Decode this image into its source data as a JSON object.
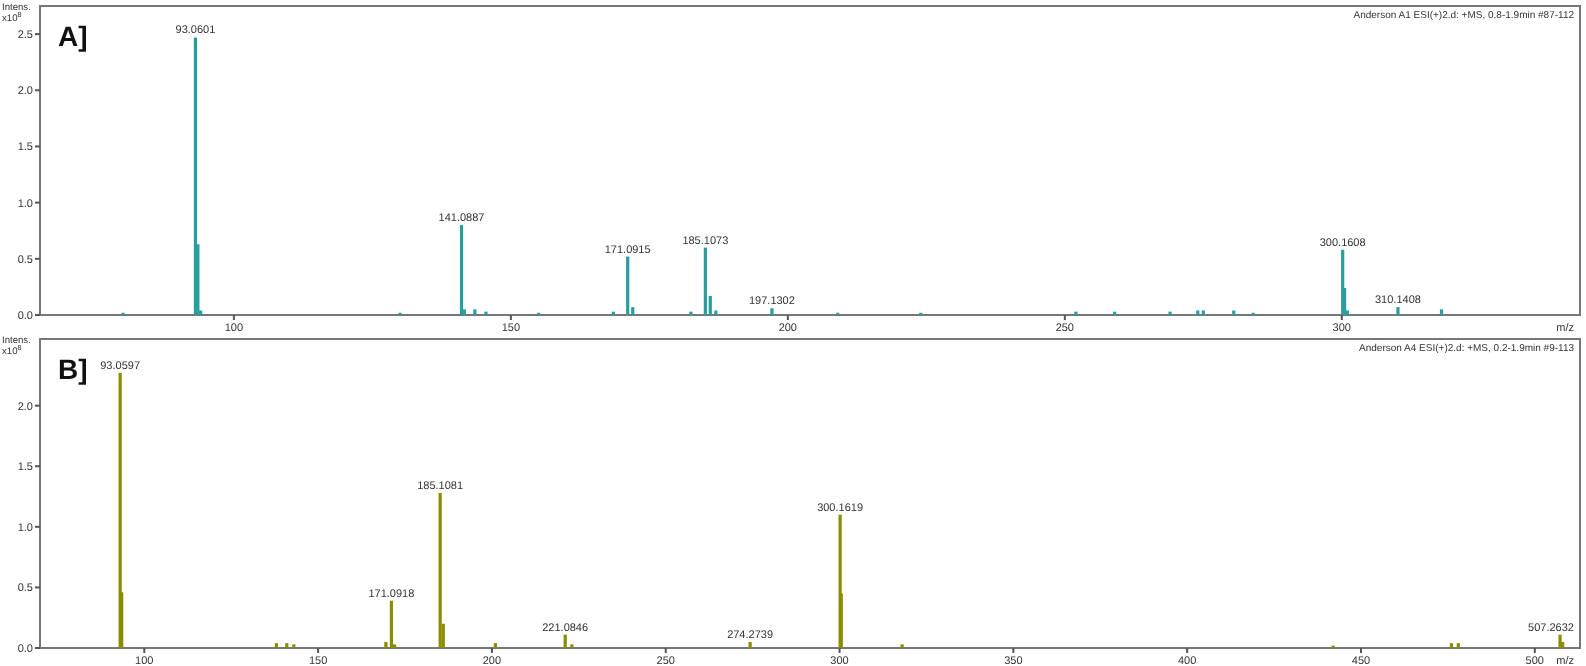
{
  "chart_data": [
    {
      "type": "bar",
      "title": "A]",
      "ylabel": "Intens. x10$^{8}$",
      "xlabel": "m/z",
      "xlim": [
        65,
        343
      ],
      "ylim": [
        0,
        2.75
      ],
      "xticks": [
        100,
        150,
        200,
        250,
        300
      ],
      "yticks": [
        {
          "value": 0,
          "label": "0.0"
        },
        {
          "value": 0.5,
          "label": "0.5"
        },
        {
          "value": 1,
          "label": "1.0"
        },
        {
          "value": 1.5,
          "label": "1.5"
        },
        {
          "value": 2,
          "label": "2.0"
        },
        {
          "value": 2.5,
          "label": "2.5"
        }
      ],
      "series": [
        {
          "color": "#2a9d9d",
          "x": [
            80,
            93.06,
            93.5,
            94,
            130,
            141.09,
            141.6,
            143.5,
            145.5,
            155,
            168.5,
            171.09,
            172,
            182.5,
            185.11,
            186,
            187,
            197.13,
            209,
            224,
            252,
            259,
            269,
            274,
            275,
            280.5,
            284,
            300.16,
            300.5,
            301,
            310.14,
            318
          ],
          "values": [
            0.02,
            2.47,
            0.63,
            0.04,
            0.02,
            0.8,
            0.05,
            0.05,
            0.03,
            0.02,
            0.03,
            0.52,
            0.07,
            0.03,
            0.6,
            0.17,
            0.04,
            0.06,
            0.02,
            0.02,
            0.03,
            0.03,
            0.03,
            0.04,
            0.04,
            0.04,
            0.02,
            0.58,
            0.24,
            0.04,
            0.07,
            0.05
          ]
        }
      ],
      "annotations": [
        "Anderson A1 ESI(+)2.d: +MS, 0.8-1.9min #87-112",
        {
          "text": "93.0601",
          "x": 93.06,
          "y": 2.47
        },
        {
          "text": "141.0887",
          "x": 141.09,
          "y": 0.8
        },
        {
          "text": "171.0915",
          "x": 171.09,
          "y": 0.52
        },
        {
          "text": "185.1073",
          "x": 185.11,
          "y": 0.6
        },
        {
          "text": "197.1302",
          "x": 197.13,
          "y": 0.06
        },
        {
          "text": "300.1608",
          "x": 300.16,
          "y": 0.58
        },
        {
          "text": "310.1408",
          "x": 310.14,
          "y": 0.07
        }
      ]
    },
    {
      "type": "bar",
      "title": "B]",
      "ylabel": "Intens. x10$^{8}$",
      "xlabel": "m/z",
      "xlim": [
        70,
        513
      ],
      "ylim": [
        0,
        2.55
      ],
      "xticks": [
        100,
        150,
        200,
        250,
        300,
        350,
        400,
        450,
        500
      ],
      "yticks": [
        {
          "value": 0,
          "label": "0.0"
        },
        {
          "value": 0.5,
          "label": "0.5"
        },
        {
          "value": 1,
          "label": "1.0"
        },
        {
          "value": 1.5,
          "label": "1.5"
        },
        {
          "value": 2,
          "label": "2.0"
        }
      ],
      "series": [
        {
          "color": "#8c8c00",
          "x": [
            93.06,
            93.5,
            138,
            141,
            143,
            169.5,
            171.09,
            172,
            185.11,
            186,
            201,
            221.08,
            223,
            274.27,
            300.16,
            300.5,
            318,
            442,
            476,
            478,
            507.26,
            508
          ],
          "values": [
            2.27,
            0.46,
            0.04,
            0.04,
            0.03,
            0.05,
            0.39,
            0.03,
            1.28,
            0.2,
            0.04,
            0.11,
            0.03,
            0.05,
            1.1,
            0.45,
            0.03,
            0.02,
            0.04,
            0.04,
            0.11,
            0.05
          ]
        }
      ],
      "annotations": [
        "Anderson A4 ESI(+)2.d: +MS, 0.2-1.9min #9-113",
        {
          "text": "93.0597",
          "x": 93.06,
          "y": 2.27
        },
        {
          "text": "171.0918",
          "x": 171.09,
          "y": 0.39
        },
        {
          "text": "185.1081",
          "x": 185.11,
          "y": 1.28
        },
        {
          "text": "221.0846",
          "x": 221.08,
          "y": 0.11
        },
        {
          "text": "274.2739",
          "x": 274.27,
          "y": 0.05
        },
        {
          "text": "300.1619",
          "x": 300.16,
          "y": 1.1
        },
        {
          "text": "507.2632",
          "x": 507.26,
          "y": 0.11
        }
      ]
    }
  ]
}
